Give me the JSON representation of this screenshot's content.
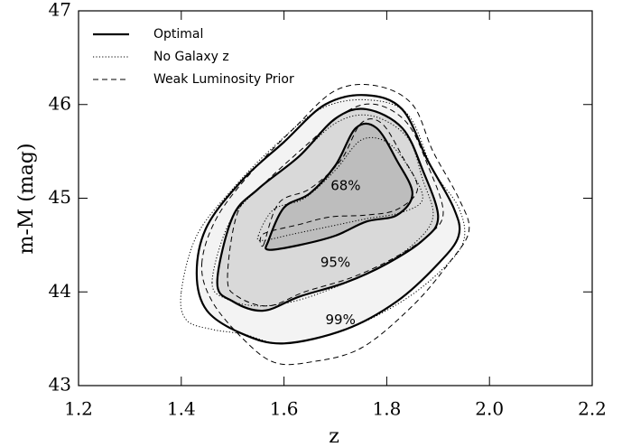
{
  "chart_data": {
    "type": "contour",
    "xlabel": "z",
    "ylabel": "m-M (mag)",
    "xlim": [
      1.2,
      2.2
    ],
    "xticks": [
      1.2,
      1.4,
      1.6,
      1.8,
      {
        "value": 2,
        "label": "2.0"
      },
      2.2
    ],
    "ylim": [
      43,
      47
    ],
    "yticks": [
      43,
      44,
      45,
      46,
      47
    ],
    "legend": "upper left",
    "series": [
      {
        "name": "Optimal",
        "style": "solid",
        "color": "#000000",
        "contours": [
          {
            "x": [
              1.43,
              1.45,
              1.52,
              1.6,
              1.68,
              1.76,
              1.83,
              1.88,
              1.93,
              1.94,
              1.9,
              1.82,
              1.72,
              1.6,
              1.52,
              1.45
            ],
            "y": [
              44.2,
              44.7,
              45.2,
              45.6,
              46.0,
              46.1,
              45.95,
              45.4,
              44.9,
              44.6,
              44.3,
              43.9,
              43.6,
              43.45,
              43.55,
              43.8
            ]
          },
          {
            "x": [
              1.47,
              1.5,
              1.55,
              1.63,
              1.7,
              1.76,
              1.83,
              1.87,
              1.9,
              1.87,
              1.8,
              1.72,
              1.63,
              1.56,
              1.5
            ],
            "y": [
              44.1,
              44.8,
              45.1,
              45.45,
              45.85,
              45.95,
              45.75,
              45.3,
              44.8,
              44.55,
              44.3,
              44.1,
              43.95,
              43.8,
              43.9
            ]
          },
          {
            "x": [
              1.57,
              1.6,
              1.65,
              1.7,
              1.74,
              1.78,
              1.82,
              1.85,
              1.82,
              1.76,
              1.7,
              1.63,
              1.57
            ],
            "y": [
              44.55,
              44.9,
              45.05,
              45.35,
              45.75,
              45.75,
              45.4,
              45.05,
              44.82,
              44.75,
              44.6,
              44.5,
              44.45
            ]
          }
        ]
      },
      {
        "name": "No Galaxy z",
        "style": "dotted",
        "color": "#000000",
        "contours": [
          {
            "x": [
              1.4,
              1.43,
              1.5,
              1.58,
              1.67,
              1.76,
              1.84,
              1.89,
              1.94,
              1.95,
              1.91,
              1.83,
              1.72,
              1.6,
              1.52,
              1.46,
              1.41
            ],
            "y": [
              44.0,
              44.6,
              45.1,
              45.55,
              45.95,
              46.05,
              45.9,
              45.3,
              44.9,
              44.55,
              44.25,
              43.9,
              43.6,
              43.45,
              43.55,
              43.6,
              43.7
            ]
          },
          {
            "x": [
              1.46,
              1.49,
              1.54,
              1.62,
              1.7,
              1.77,
              1.84,
              1.87,
              1.89,
              1.85,
              1.78,
              1.7,
              1.62,
              1.55,
              1.49
            ],
            "y": [
              44.1,
              44.7,
              45.05,
              45.4,
              45.8,
              45.88,
              45.65,
              45.2,
              44.8,
              44.5,
              44.25,
              44.05,
              43.9,
              43.85,
              43.92
            ]
          },
          {
            "x": [
              1.55,
              1.58,
              1.64,
              1.7,
              1.75,
              1.8,
              1.84,
              1.87,
              1.83,
              1.76,
              1.69,
              1.62,
              1.56
            ],
            "y": [
              44.6,
              44.88,
              45.0,
              45.3,
              45.62,
              45.6,
              45.35,
              45.0,
              44.85,
              44.78,
              44.7,
              44.62,
              44.55
            ]
          }
        ]
      },
      {
        "name": "Weak Luminosity Prior",
        "style": "dashed",
        "color": "#000000",
        "contours": [
          {
            "x": [
              1.44,
              1.47,
              1.54,
              1.62,
              1.7,
              1.78,
              1.85,
              1.89,
              1.94,
              1.96,
              1.92,
              1.85,
              1.75,
              1.65,
              1.58,
              1.52,
              1.46
            ],
            "y": [
              44.3,
              44.8,
              45.3,
              45.75,
              46.15,
              46.2,
              46.0,
              45.5,
              45.0,
              44.65,
              44.3,
              43.85,
              43.4,
              43.25,
              43.25,
              43.5,
              43.9
            ]
          },
          {
            "x": [
              1.49,
              1.51,
              1.56,
              1.64,
              1.72,
              1.78,
              1.84,
              1.88,
              1.91,
              1.88,
              1.81,
              1.73,
              1.64,
              1.57,
              1.51
            ],
            "y": [
              44.15,
              44.85,
              45.15,
              45.55,
              45.92,
              46.0,
              45.8,
              45.35,
              44.85,
              44.6,
              44.35,
              44.15,
              44.0,
              43.85,
              43.95
            ]
          },
          {
            "x": [
              1.56,
              1.59,
              1.65,
              1.71,
              1.75,
              1.79,
              1.83,
              1.86,
              1.82,
              1.76,
              1.69,
              1.63,
              1.56
            ],
            "y": [
              44.5,
              44.95,
              45.1,
              45.4,
              45.8,
              45.8,
              45.45,
              45.1,
              44.88,
              44.82,
              44.8,
              44.72,
              44.62
            ]
          }
        ]
      }
    ],
    "annotations": [
      {
        "text": "68%",
        "x": 1.72,
        "y": 45.13
      },
      {
        "text": "95%",
        "x": 1.7,
        "y": 44.31
      },
      {
        "text": "99%",
        "x": 1.71,
        "y": 43.7
      }
    ]
  }
}
